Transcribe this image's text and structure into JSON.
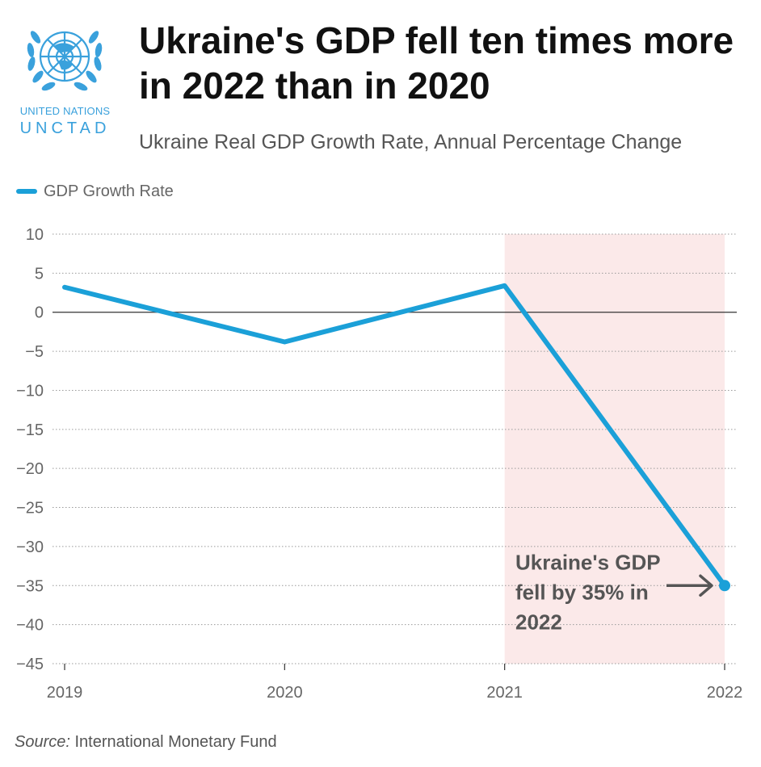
{
  "logo": {
    "line1": "UNITED NATIONS",
    "line2": "UNCTAD"
  },
  "header": {
    "title": "Ukraine's GDP fell ten times more in 2022 than in 2020",
    "subtitle": "Ukraine Real GDP Growth Rate, Annual Percentage Change"
  },
  "footer": {
    "source_label": "Source:",
    "source_text": "International Monetary Fund"
  },
  "colors": {
    "line": "#1ba0d8",
    "highlight": "#fbe9e9",
    "annotation": "#555555"
  },
  "chart_data": {
    "type": "line",
    "title": "Ukraine's GDP fell ten times more in 2022 than in 2020",
    "subtitle": "Ukraine Real GDP Growth Rate, Annual Percentage Change",
    "x": [
      "2019",
      "2020",
      "2021",
      "2022"
    ],
    "series": [
      {
        "name": "GDP Growth Rate",
        "values": [
          3.2,
          -3.8,
          3.4,
          -35.0
        ]
      }
    ],
    "ylim": [
      -45,
      10
    ],
    "yticks": [
      10,
      5,
      0,
      -5,
      -10,
      -15,
      -20,
      -25,
      -30,
      -35,
      -40,
      -45
    ],
    "ytick_labels": [
      "10",
      "5",
      "0",
      "−5",
      "−10",
      "−15",
      "−20",
      "−25",
      "−30",
      "−35",
      "−40",
      "−45"
    ],
    "xlabel": "",
    "ylabel": "",
    "grid": true,
    "legend": "top-left",
    "highlight_range": [
      "2021",
      "2022"
    ],
    "annotation": {
      "lines": [
        "Ukraine's GDP",
        "fell by 35% in",
        "2022"
      ],
      "target_x": "2022",
      "target_y": -35.0
    }
  }
}
